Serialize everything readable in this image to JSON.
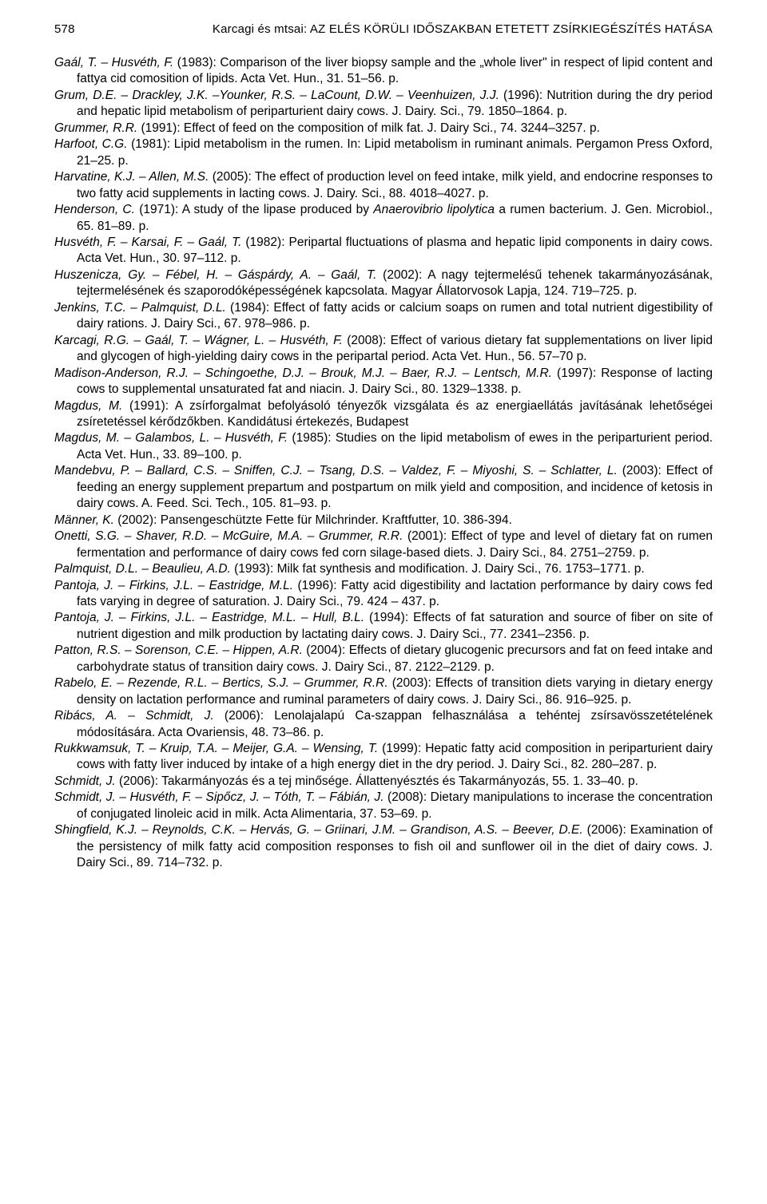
{
  "header": {
    "page_number": "578",
    "running_title": "Karcagi és mtsai: AZ ELÉS KÖRÜLI IDŐSZAKBAN ETETETT ZSÍRKIEGÉSZÍTÉS HATÁSA"
  },
  "references": [
    {
      "authors": "Gaál, T. – Husvéth, F.",
      "rest": " (1983): Comparison of the liver biopsy sample and the „whole liver\" in respect of lipid content and fattya cid comosition of lipids. Acta Vet. Hun., 31. 51–56. p."
    },
    {
      "authors": "Grum, D.E. – Drackley, J.K. –Younker, R.S. – LaCount, D.W. – Veenhuizen, J.J.",
      "rest": " (1996): Nutrition during the dry period and hepatic lipid metabolism of periparturient dairy cows. J. Dairy. Sci., 79. 1850–1864. p."
    },
    {
      "authors": "Grummer, R.R.",
      "rest": " (1991): Effect of feed on the composition of milk fat. J. Dairy Sci., 74. 3244–3257. p."
    },
    {
      "authors": "Harfoot, C.G.",
      "rest": " (1981): Lipid metabolism in the rumen. In: Lipid metabolism in ruminant animals. Pergamon Press Oxford, 21–25. p."
    },
    {
      "authors": "Harvatine, K.J. – Allen, M.S.",
      "rest": " (2005): The effect of production level on feed intake, milk yield, and endocrine responses to two fatty acid supplements in lacting cows. J. Dairy. Sci., 88. 4018–4027. p."
    },
    {
      "authors": "Henderson, C.",
      "rest": " (1971): A study of the lipase produced by <em>Anaerovibrio lipolytica</em> a rumen bacterium. J. Gen. Microbiol., 65. 81–89. p."
    },
    {
      "authors": "Husvéth, F. – Karsai, F. – Gaál, T.",
      "rest": " (1982): Peripartal fluctuations of plasma and hepatic lipid components in dairy cows. Acta Vet. Hun., 30. 97–112. p."
    },
    {
      "authors": "Huszenicza, Gy. – Fébel, H. – Gáspárdy, A. – Gaál, T.",
      "rest": " (2002): A nagy tejtermelésű tehenek takarmányozásának, tejtermelésének és szaporodóképességének kapcsolata. Magyar Állatorvosok Lapja, 124. 719–725. p."
    },
    {
      "authors": "Jenkins, T.C. – Palmquist, D.L.",
      "rest": " (1984): Effect of fatty acids or calcium soaps on rumen and total nutrient digestibility of dairy rations. J. Dairy Sci., 67. 978–986. p."
    },
    {
      "authors": "Karcagi, R.G. – Gaál, T. – Wágner, L. – Husvéth, F.",
      "rest": " (2008): Effect of various dietary fat supplementations on liver lipid and glycogen of high-yielding dairy cows in the peripartal period. Acta Vet. Hun., 56. 57–70 p."
    },
    {
      "authors": "Madison-Anderson, R.J. – Schingoethe, D.J. – Brouk, M.J. – Baer, R.J. – Lentsch, M.R.",
      "rest": " (1997): Response of lacting cows to supplemental unsaturated fat and niacin. J. Dairy Sci., 80. 1329–1338. p."
    },
    {
      "authors": "Magdus, M.",
      "rest": " (1991): A zsírforgalmat befolyásoló tényezők vizsgálata és az energiaellátás javításának lehetőségei zsíretetéssel kérődzőkben. Kandidátusi értekezés, Budapest"
    },
    {
      "authors": "Magdus, M. – Galambos, L. – Husvéth, F.",
      "rest": " (1985): Studies on the lipid metabolism of ewes in the periparturient period. Acta Vet. Hun., 33. 89–100. p."
    },
    {
      "authors": "Mandebvu, P. – Ballard, C.S. – Sniffen, C.J. – Tsang, D.S. – Valdez, F. – Miyoshi, S. – Schlatter, L.",
      "rest": " (2003): Effect of feeding an energy supplement prepartum and postpartum on milk yield and composition, and incidence of ketosis in dairy cows. A. Feed. Sci. Tech., 105. 81–93. p."
    },
    {
      "authors": "Männer, K.",
      "rest": " (2002): Pansengeschützte Fette für Milchrinder. Kraftfutter, 10. 386-394."
    },
    {
      "authors": "Onetti, S.G. – Shaver, R.D. – McGuire, M.A. – Grummer, R.R.",
      "rest": " (2001): Effect of type and level of dietary fat on rumen fermentation and performance of dairy cows fed corn silage-based diets. J. Dairy Sci., 84. 2751–2759. p."
    },
    {
      "authors": "Palmquist, D.L. – Beaulieu, A.D.",
      "rest": " (1993): Milk fat synthesis and modification. J. Dairy Sci., 76. 1753–1771. p."
    },
    {
      "authors": "Pantoja, J. – Firkins, J.L. – Eastridge, M.L.",
      "rest": " (1996): Fatty acid digestibility and lactation performance by dairy cows fed fats varying in degree of saturation. J. Dairy Sci., 79. 424 – 437. p."
    },
    {
      "authors": "Pantoja, J. – Firkins, J.L. – Eastridge, M.L. – Hull, B.L.",
      "rest": " (1994): Effects of fat saturation and source of fiber on site of nutrient digestion and milk production by lactating dairy cows. J. Dairy Sci., 77. 2341–2356. p."
    },
    {
      "authors": "Patton, R.S. – Sorenson, C.E. – Hippen, A.R.",
      "rest": " (2004): Effects of dietary glucogenic precursors and fat on feed intake and carbohydrate status of transition dairy cows. J. Dairy Sci., 87. 2122–2129. p."
    },
    {
      "authors": "Rabelo, E. – Rezende, R.L. – Bertics, S.J. – Grummer, R.R.",
      "rest": " (2003): Effects of transition diets varying in dietary energy density on lactation performance and ruminal parameters of dairy cows. J. Dairy Sci., 86. 916–925. p."
    },
    {
      "authors": "Ribács, A. – Schmidt, J.",
      "rest": " (2006): Lenolajalapú Ca-szappan felhasználása a tehéntej zsírsavösszetételének módosítására. Acta Ovariensis, 48. 73–86. p."
    },
    {
      "authors": "Rukkwamsuk, T. – Kruip, T.A. – Meijer, G.A. – Wensing, T.",
      "rest": " (1999): Hepatic fatty acid composition in periparturient dairy cows with fatty liver induced by intake of a high energy diet in the dry period. J. Dairy Sci., 82. 280–287. p."
    },
    {
      "authors": "Schmidt, J.",
      "rest": " (2006): Takarmányozás és a tej minősége. Állattenyésztés és Takarmányozás, 55. 1. 33–40. p."
    },
    {
      "authors": "Schmidt, J. – Husvéth, F. – Sipőcz, J. – Tóth, T. – Fábián, J.",
      "rest": " (2008): Dietary manipulations to incerase the concentration of conjugated linoleic acid in milk. Acta Alimentaria, 37. 53–69. p."
    },
    {
      "authors": "Shingfield, K.J. – Reynolds, C.K. – Hervás, G. – Griinari, J.M. – Grandison, A.S. – Beever, D.E.",
      "rest": " (2006): Examination of the persistency of milk fatty acid composition responses to fish oil and sunflower oil in the diet of dairy cows. J. Dairy Sci., 89. 714–732. p."
    }
  ]
}
